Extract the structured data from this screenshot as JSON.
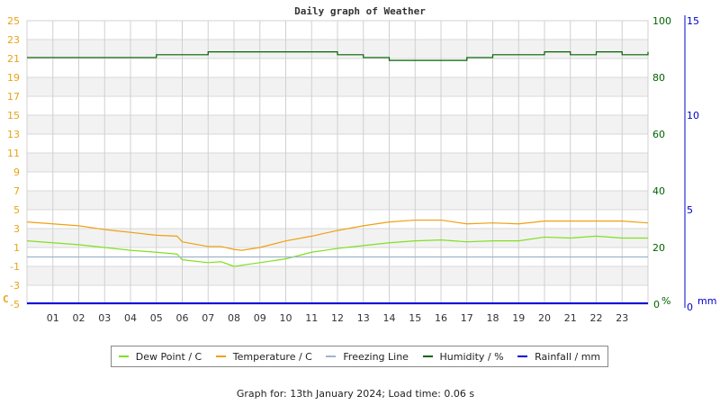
{
  "chart_data": {
    "type": "line",
    "title": "Daily graph of Weather",
    "xlabel": "",
    "x_ticks": [
      "01",
      "02",
      "03",
      "04",
      "05",
      "06",
      "07",
      "08",
      "09",
      "10",
      "11",
      "12",
      "13",
      "14",
      "15",
      "16",
      "17",
      "18",
      "19",
      "20",
      "21",
      "22",
      "23"
    ],
    "y_left": {
      "label": "C",
      "ticks": [
        25,
        23,
        21,
        19,
        17,
        15,
        13,
        11,
        9,
        7,
        5,
        3,
        1,
        -1,
        -3,
        -5
      ],
      "range": [
        -5,
        25
      ],
      "color": "#e8a317"
    },
    "y_right_humidity": {
      "label": "%",
      "ticks": [
        100,
        80,
        60,
        40,
        20,
        0
      ],
      "range": [
        0,
        100
      ],
      "color": "#006400"
    },
    "y_right_rain": {
      "label": "mm",
      "ticks": [
        15,
        10,
        5,
        0
      ],
      "range": [
        0,
        15
      ],
      "color": "#0000cc"
    },
    "series": [
      {
        "name": "Dew Point / C",
        "color": "#80e020",
        "x": [
          0,
          1,
          2,
          3,
          4,
          5,
          5.8,
          6,
          7,
          7.5,
          8,
          9,
          10,
          11,
          12,
          13,
          14,
          15,
          16,
          17,
          18,
          19,
          20,
          21,
          22,
          23,
          24
        ],
        "values": [
          1.7,
          1.5,
          1.3,
          1.0,
          0.7,
          0.5,
          0.3,
          -0.3,
          -0.6,
          -0.5,
          -1.0,
          -0.6,
          -0.2,
          0.5,
          0.9,
          1.2,
          1.5,
          1.7,
          1.8,
          1.6,
          1.7,
          1.7,
          2.1,
          2.0,
          2.2,
          2.0,
          2.0
        ]
      },
      {
        "name": "Temperature / C",
        "color": "#f0a010",
        "x": [
          0,
          1,
          2,
          3,
          4,
          5,
          5.8,
          6,
          7,
          7.5,
          8,
          8.3,
          9,
          10,
          11,
          12,
          13,
          14,
          15,
          16,
          17,
          18,
          19,
          20,
          21,
          22,
          23,
          24
        ],
        "values": [
          3.7,
          3.5,
          3.3,
          2.9,
          2.6,
          2.3,
          2.2,
          1.6,
          1.1,
          1.1,
          0.8,
          0.7,
          1.0,
          1.7,
          2.2,
          2.8,
          3.3,
          3.7,
          3.9,
          3.9,
          3.5,
          3.6,
          3.5,
          3.8,
          3.8,
          3.8,
          3.8,
          3.6
        ]
      },
      {
        "name": "Freezing Line",
        "color": "#a0b4c8",
        "x": [
          0,
          24
        ],
        "values": [
          0,
          0
        ]
      },
      {
        "name": "Humidity / %",
        "color": "#006400",
        "x": [
          0,
          1,
          2,
          3,
          4,
          5,
          6,
          7,
          8,
          9,
          10,
          11,
          12,
          13,
          14,
          15,
          16,
          17,
          18,
          19,
          20,
          21,
          22,
          23,
          24
        ],
        "values": [
          87,
          87,
          87,
          87,
          87,
          88,
          88,
          89,
          89,
          89,
          89,
          89,
          88,
          87,
          86,
          86,
          86,
          87,
          88,
          88,
          89,
          88,
          89,
          88,
          89
        ]
      },
      {
        "name": "Rainfall / mm",
        "color": "#0000dd",
        "x": [
          0,
          24
        ],
        "values": [
          0,
          0
        ]
      }
    ],
    "grid": true,
    "legend_position": "bottom"
  },
  "legend": [
    {
      "label": "Dew Point / C",
      "color": "#80e020"
    },
    {
      "label": "Temperature / C",
      "color": "#f0a010"
    },
    {
      "label": "Freezing Line",
      "color": "#a0b4c8"
    },
    {
      "label": "Humidity / %",
      "color": "#006400"
    },
    {
      "label": "Rainfall / mm",
      "color": "#0000dd"
    }
  ],
  "footer": "Graph for: 13th January 2024; Load time: 0.06 s"
}
